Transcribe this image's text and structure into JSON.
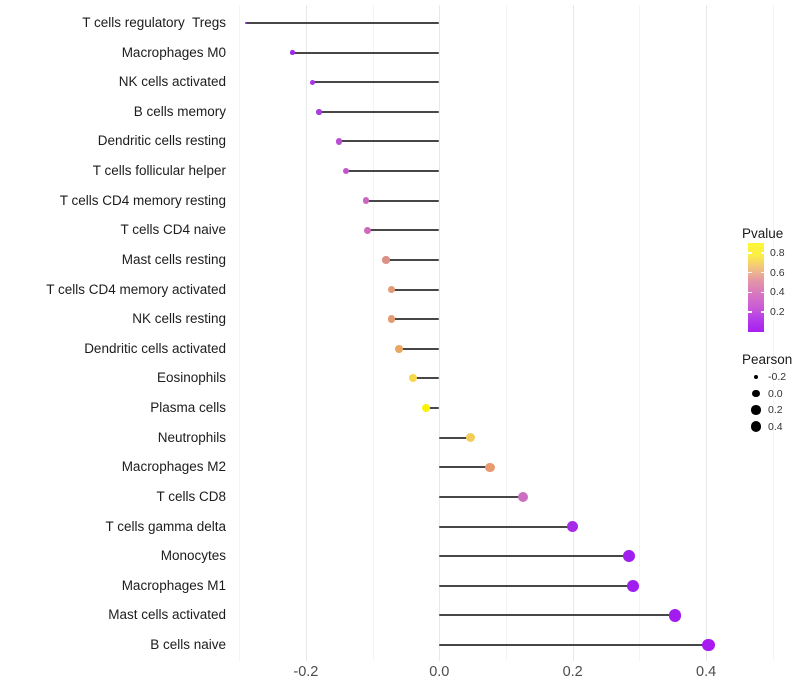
{
  "chart_data": {
    "type": "lollipop",
    "title": "",
    "xlabel": "",
    "ylabel": "",
    "baseline": 0.0,
    "stem_color": "#474747",
    "grid": "major and minor vertical gridlines, no axis lines",
    "x_axis": {
      "tick_labels": [
        "-0.2",
        "0.0",
        "0.2",
        "0.4"
      ],
      "tick_values": [
        -0.2,
        0.0,
        0.2,
        0.4
      ],
      "minor_tick_values": [
        -0.3,
        -0.1,
        0.1,
        0.3,
        0.5
      ],
      "range": [
        -0.307,
        0.513
      ]
    },
    "size_encoding": {
      "aesthetic": "Pearson",
      "domain": [
        -0.29,
        0.4
      ]
    },
    "color_encoding": {
      "aesthetic": "Pvalue",
      "low_color": "#A020F0",
      "high_color": "#FCF735",
      "domain": [
        0.0,
        0.9
      ]
    },
    "points": [
      {
        "category": "T cells regulatory  Tregs",
        "pearson": -0.29,
        "color": "#8B2AD9"
      },
      {
        "category": "Macrophages M0",
        "pearson": -0.22,
        "color": "#9C2BE8"
      },
      {
        "category": "NK cells activated",
        "pearson": -0.19,
        "color": "#A635E3"
      },
      {
        "category": "B cells memory",
        "pearson": -0.18,
        "color": "#A93EE0"
      },
      {
        "category": "Dendritic cells resting",
        "pearson": -0.15,
        "color": "#BB4FD4"
      },
      {
        "category": "T cells follicular helper",
        "pearson": -0.14,
        "color": "#C156CE"
      },
      {
        "category": "T cells CD4 memory resting",
        "pearson": -0.11,
        "color": "#CA67C0"
      },
      {
        "category": "T cells CD4 naive",
        "pearson": -0.107,
        "color": "#CE6CBB"
      },
      {
        "category": "Mast cells resting",
        "pearson": -0.08,
        "color": "#DB9186"
      },
      {
        "category": "T cells CD4 memory activated",
        "pearson": -0.072,
        "color": "#E29A77"
      },
      {
        "category": "NK cells resting",
        "pearson": -0.072,
        "color": "#E39B74"
      },
      {
        "category": "Dendritic cells activated",
        "pearson": -0.06,
        "color": "#EAA763"
      },
      {
        "category": "Eosinophils",
        "pearson": -0.04,
        "color": "#F5D94B"
      },
      {
        "category": "Plasma cells",
        "pearson": -0.02,
        "color": "#FAF308"
      },
      {
        "category": "Neutrophils",
        "pearson": 0.047,
        "color": "#F3CD5B"
      },
      {
        "category": "Macrophages M2",
        "pearson": 0.076,
        "color": "#E7996F"
      },
      {
        "category": "T cells CD8",
        "pearson": 0.125,
        "color": "#CB6FC0"
      },
      {
        "category": "T cells gamma delta",
        "pearson": 0.2,
        "color": "#A62BE9"
      },
      {
        "category": "Monocytes",
        "pearson": 0.284,
        "color": "#A01FEE"
      },
      {
        "category": "Macrophages M1",
        "pearson": 0.291,
        "color": "#A01FEE"
      },
      {
        "category": "Mast cells activated",
        "pearson": 0.353,
        "color": "#A21BEF"
      },
      {
        "category": "B cells naive",
        "pearson": 0.403,
        "color": "#A81AEF"
      }
    ],
    "legend": {
      "pvalue": {
        "title": "Pvalue",
        "tick_labels": [
          "0.8",
          "0.6",
          "0.4",
          "0.2"
        ],
        "tick_values": [
          0.8,
          0.6,
          0.4,
          0.2
        ],
        "gradient_stops_bottom_to_top": [
          "#A81FF2",
          "#B43BE8",
          "#CB5FD3",
          "#D877BF",
          "#E394A8",
          "#F2BF83",
          "#FAED46",
          "#FCF735"
        ]
      },
      "pearson": {
        "title": "Pearson",
        "tick_labels": [
          "-0.2",
          "0.0",
          "0.2",
          "0.4"
        ],
        "tick_values": [
          -0.2,
          0.0,
          0.2,
          0.4
        ],
        "dot_color": "#000000"
      }
    }
  }
}
